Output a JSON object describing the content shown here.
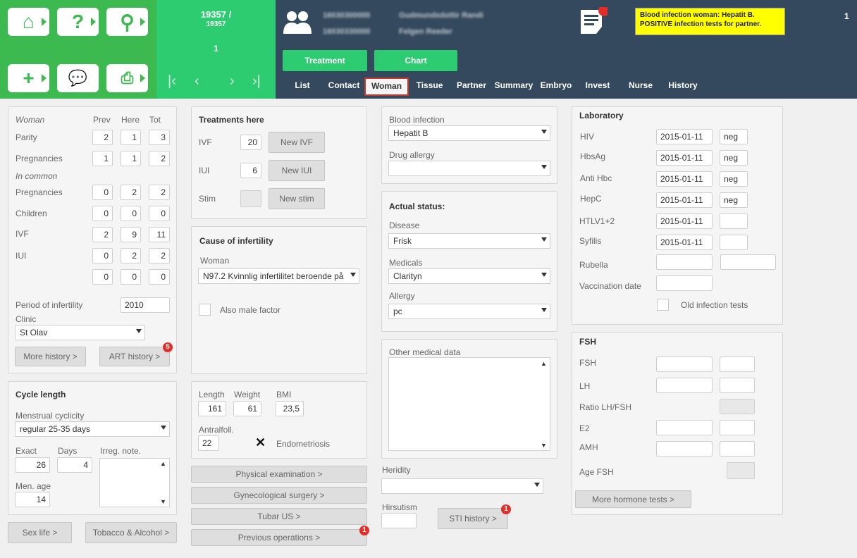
{
  "header": {
    "patient_id": "19357 /",
    "patient_id2": "19357",
    "page_num": "1",
    "corner_num": "1",
    "person1_id": "16030300000",
    "person1_name": "Gudmundsdottir Randi",
    "person2_id": "16030330000",
    "person2_name": "Felgen Reeder",
    "alert_line1": "Blood infection woman: Hepatit B.",
    "alert_line2": "POSITIVE infection tests for partner.",
    "treatment_btn": "Treatment",
    "chart_btn": "Chart"
  },
  "tabs": [
    "List",
    "Contact",
    "Woman",
    "Tissue",
    "Partner",
    "Summary",
    "Embryo",
    "Invest",
    "Nurse",
    "History"
  ],
  "woman": {
    "col_woman": "Woman",
    "col_prev": "Prev",
    "col_here": "Here",
    "col_tot": "Tot",
    "parity": "Parity",
    "parity_v": [
      "2",
      "1",
      "3"
    ],
    "pregnancies": "Pregnancies",
    "preg_v": [
      "1",
      "1",
      "2"
    ],
    "in_common": "In common",
    "c_pregnancies": "Pregnancies",
    "c_preg_v": [
      "0",
      "2",
      "2"
    ],
    "children": "Children",
    "children_v": [
      "0",
      "0",
      "0"
    ],
    "ivf": "IVF",
    "ivf_v": [
      "2",
      "9",
      "11"
    ],
    "iui": "IUI",
    "iui_v": [
      "0",
      "2",
      "2"
    ],
    "extra_v": [
      "0",
      "0",
      "0"
    ],
    "period_label": "Period of infertility",
    "period_value": "2010",
    "clinic_label": "Clinic",
    "clinic_value": "St Olav",
    "more_history": "More history >",
    "art_history": "ART history >",
    "art_badge": "5"
  },
  "cycle": {
    "title": "Cycle length",
    "menstrual_label": "Menstrual cyclicity",
    "menstrual_value": "regular 25-35 days",
    "exact_label": "Exact",
    "days_label": "Days",
    "irreg_label": "Irreg. note.",
    "exact_value": "26",
    "days_value": "4",
    "menage_label": "Men. age",
    "menage_value": "14"
  },
  "bottom_btns": {
    "sex_life": "Sex life >",
    "tobacco": "Tobacco & Alcohol >"
  },
  "treatments": {
    "title": "Treatments here",
    "ivf": "IVF",
    "ivf_v": "20",
    "new_ivf": "New IVF",
    "iui": "IUI",
    "iui_v": "6",
    "new_iui": "New IUI",
    "stim": "Stim",
    "new_stim": "New stim"
  },
  "cause": {
    "title": "Cause of infertility",
    "woman_label": "Woman",
    "woman_value": "N97.2 Kvinnlig infertilitet beroende på",
    "male_factor": "Also male factor"
  },
  "body": {
    "length_label": "Length",
    "weight_label": "Weight",
    "bmi_label": "BMI",
    "length_v": "161",
    "weight_v": "61",
    "bmi_v": "23,5",
    "antral_label": "Antralfoll.",
    "antral_v": "22",
    "endo_label": "Endometriosis"
  },
  "exam_btns": {
    "physical": "Physical examination >",
    "gyn": "Gynecological surgery >",
    "tubar": "Tubar US >",
    "prev_ops": "Previous operations >",
    "prev_badge": "1"
  },
  "blood": {
    "label": "Blood infection",
    "value": "Hepatit B",
    "drug_label": "Drug allergy",
    "drug_value": ""
  },
  "status": {
    "title": "Actual status:",
    "disease_label": "Disease",
    "disease_value": "Frisk",
    "medicals_label": "Medicals",
    "medicals_value": "Clarityn",
    "allergy_label": "Allergy",
    "allergy_value": "pc"
  },
  "other": {
    "label": "Other medical data",
    "heridity_label": "Heridity",
    "hirsutism_label": "Hirsutism",
    "sti_btn": "STI history >",
    "sti_badge": "1"
  },
  "lab": {
    "title": "Laboratory",
    "rows": [
      {
        "label": "HIV",
        "date": "2015-01-11",
        "res": "neg"
      },
      {
        "label": "HbsAg",
        "date": "2015-01-11",
        "res": "neg"
      },
      {
        "label": "Anti Hbc",
        "date": "2015-01-11",
        "res": "neg"
      },
      {
        "label": "HepC",
        "date": "2015-01-11",
        "res": "neg"
      },
      {
        "label": "HTLV1+2",
        "date": "2015-01-11",
        "res": ""
      },
      {
        "label": "Syfilis",
        "date": "2015-01-11",
        "res": ""
      }
    ],
    "rubella": "Rubella",
    "vaccination": "Vaccination date",
    "old_tests": "Old infection tests"
  },
  "fsh": {
    "title": "FSH",
    "fsh": "FSH",
    "lh": "LH",
    "ratio": "Ratio LH/FSH",
    "e2": "E2",
    "amh": "AMH",
    "age": "Age FSH",
    "more": "More hormone tests >"
  }
}
